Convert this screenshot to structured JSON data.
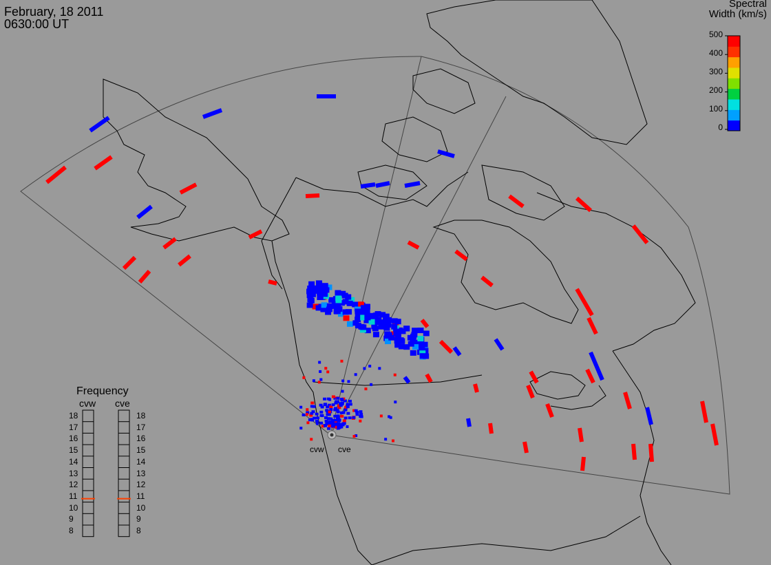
{
  "header": {
    "date": "February, 18 2011",
    "time": "0630:00 UT"
  },
  "colorbar": {
    "title_line1": "Spectral",
    "title_line2": "Width (km/s)",
    "ticks": [
      "500",
      "400",
      "300",
      "200",
      "100",
      "0"
    ],
    "colors": [
      "#0000ff",
      "#00a0ff",
      "#00e0e0",
      "#00d040",
      "#80e000",
      "#e0e000",
      "#ffa000",
      "#ff3000",
      "#ff0000"
    ]
  },
  "frequency_panel": {
    "title": "Frequency",
    "radars": [
      "cvw",
      "cve"
    ],
    "values": [
      "18",
      "17",
      "16",
      "15",
      "14",
      "13",
      "12",
      "11",
      "10",
      "9",
      "8"
    ],
    "cvw_frequency_mhz": 10.8,
    "cve_frequency_mhz": 10.8,
    "marker_color": "#ff4000"
  },
  "radar_sites": [
    "cvw",
    "cve"
  ],
  "map": {
    "background": "#9a9a9a",
    "coastline_color": "#000000",
    "fov_color": "#404040",
    "low_value_color": "#0000ff",
    "high_value_color": "#ff0000"
  }
}
